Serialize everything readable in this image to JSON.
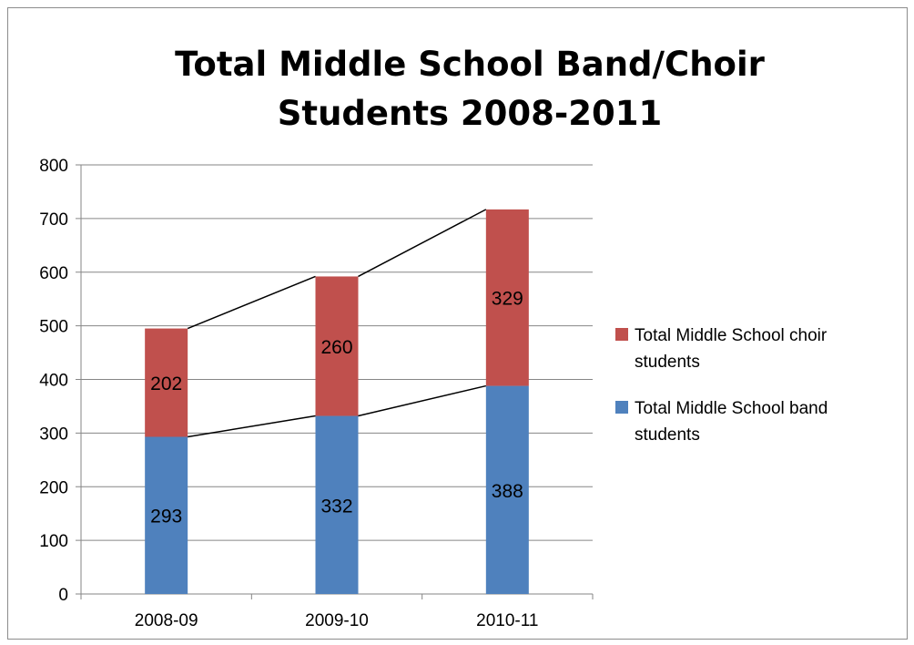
{
  "chart_data": {
    "type": "bar",
    "stacked": true,
    "title_lines": [
      "Total Middle School Band/Choir",
      "Students 2008-2011"
    ],
    "categories": [
      "2008-09",
      "2009-10",
      "2010-11"
    ],
    "series": [
      {
        "name": "Total Middle School band students",
        "values": [
          293,
          332,
          388
        ],
        "color": "#4f81bd"
      },
      {
        "name": "Total Middle School choir students",
        "values": [
          202,
          260,
          329
        ],
        "color": "#c0504d"
      }
    ],
    "ylim": [
      0,
      800
    ],
    "yticks": [
      0,
      100,
      200,
      300,
      400,
      500,
      600,
      700,
      800
    ],
    "grid": true,
    "series_lines": true,
    "legend_position": "right",
    "legend": [
      {
        "lines": [
          "Total Middle School choir",
          "students"
        ],
        "color": "#c0504d"
      },
      {
        "lines": [
          "Total Middle School band",
          "students"
        ],
        "color": "#4f81bd"
      }
    ],
    "gridline_color": "#868686",
    "axis_color": "#868686",
    "connector_color": "#000000"
  }
}
